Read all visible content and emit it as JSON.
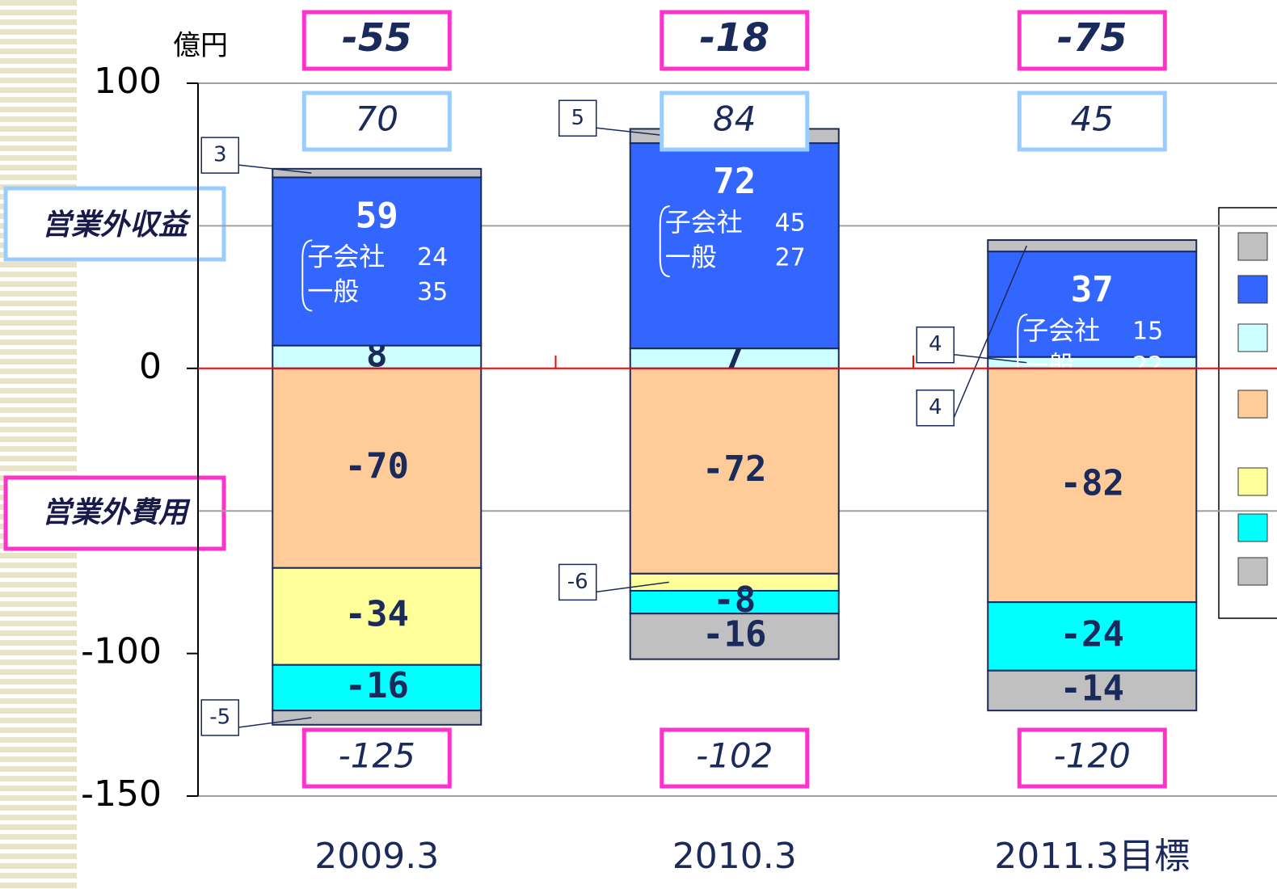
{
  "chart_data": {
    "type": "stacked_bar",
    "unit": "億円",
    "categories": [
      "2009.3",
      "2010.3",
      "2011.3目標"
    ],
    "series": [
      {
        "color": "#c0c0c0",
        "values": [
          3,
          5,
          4
        ]
      },
      {
        "color": "#3366ff",
        "values": [
          59,
          72,
          37
        ]
      },
      {
        "color": "#ccffff",
        "values": [
          8,
          7,
          4
        ]
      },
      {
        "color": "#ffcc99",
        "values": [
          -70,
          -72,
          -82
        ]
      },
      {
        "color": "#ffff99",
        "values": [
          -34,
          -6,
          null
        ]
      },
      {
        "color": "#00ffff",
        "values": [
          -16,
          -8,
          -24
        ]
      },
      {
        "color": "#c0c0c0",
        "values": [
          -5,
          -16,
          -14
        ]
      }
    ],
    "breakdown": [
      [
        {
          "label": "子会社",
          "value": 24
        },
        {
          "label": "一般",
          "value": 35
        }
      ],
      [
        {
          "label": "子会社",
          "value": 45
        },
        {
          "label": "一般",
          "value": 27
        }
      ],
      [
        {
          "label": "子会社",
          "value": 15
        },
        {
          "label": "一般",
          "value": 22
        }
      ]
    ],
    "net_values": [
      -55,
      -18,
      -75
    ],
    "income_totals": [
      70,
      84,
      45
    ],
    "expense_totals": [
      -125,
      -102,
      -120
    ],
    "income_label": "営業外収益",
    "expense_label": "営業外費用",
    "ylim": [
      -150,
      100
    ],
    "yticks": [
      100,
      0,
      -100,
      -150
    ],
    "gridlines": [
      100,
      50,
      -50,
      -150
    ],
    "zero_line_color": "#ff0000"
  }
}
